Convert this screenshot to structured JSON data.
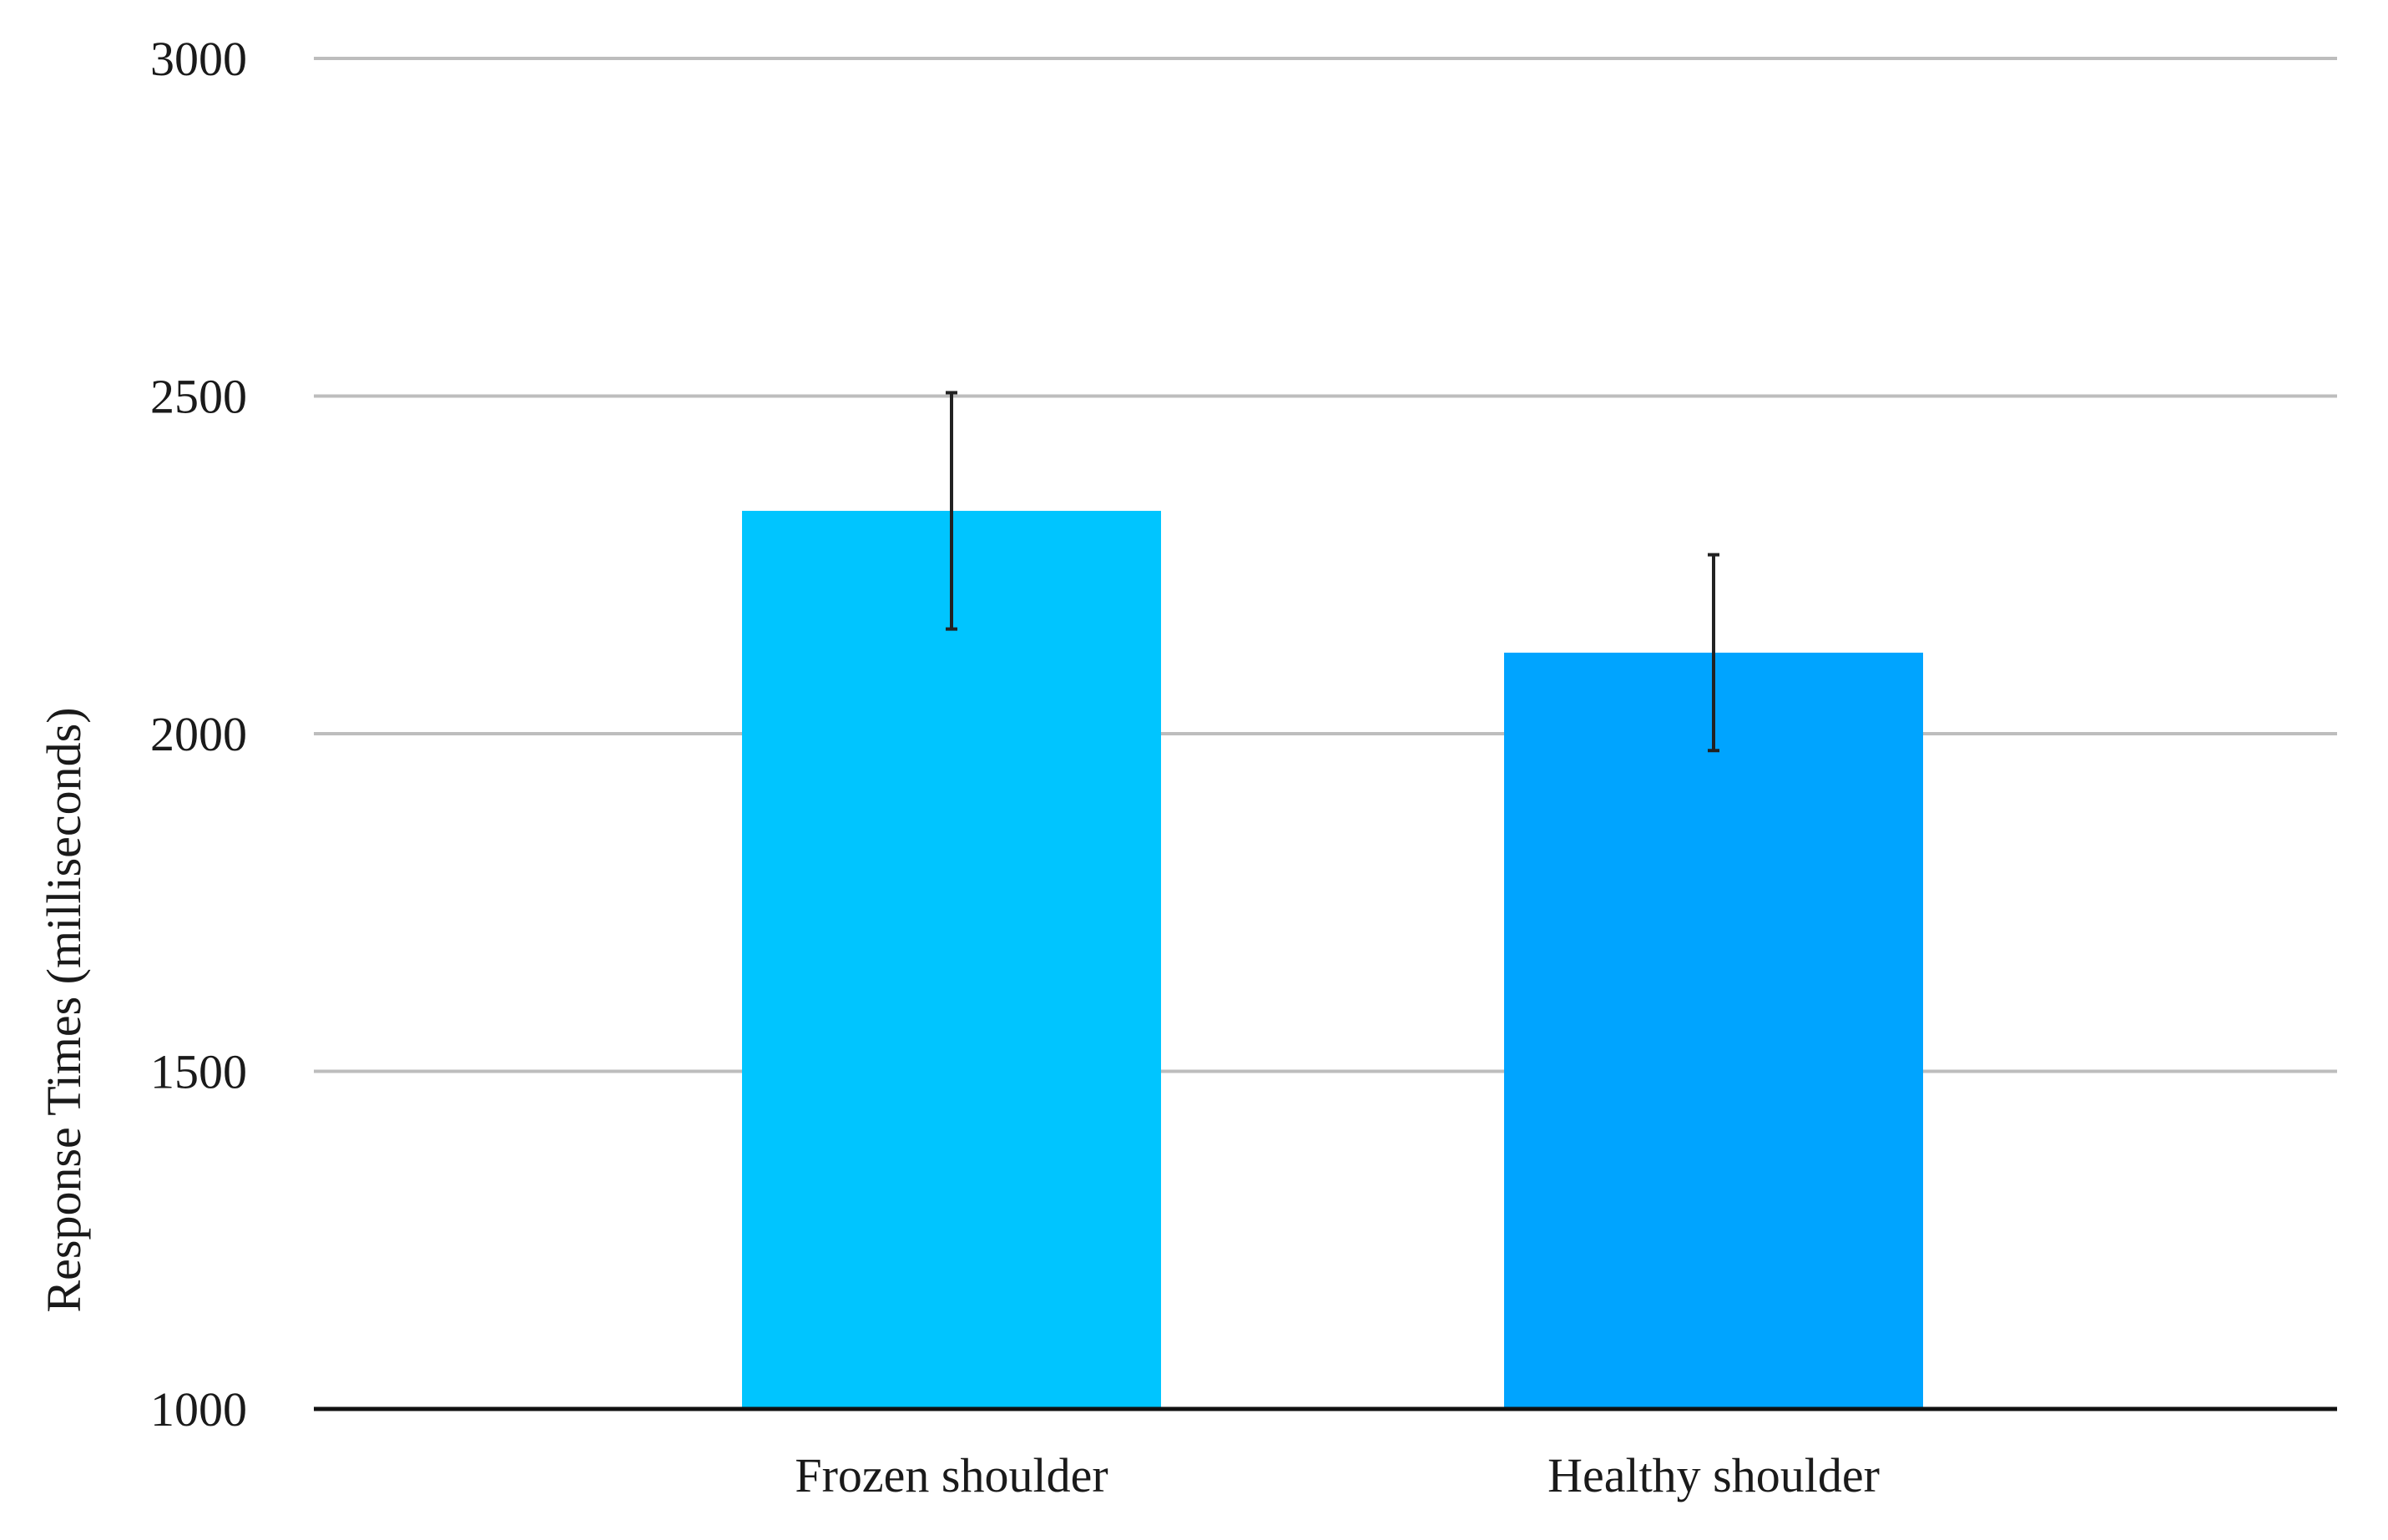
{
  "chart_data": {
    "type": "bar",
    "title": "",
    "xlabel": "",
    "ylabel": "Response Times (milliseconds)",
    "ylim": [
      1000,
      3000
    ],
    "yticks": [
      "1000",
      "1500",
      "2000",
      "2500",
      "3000"
    ],
    "grid": true,
    "legend": "none",
    "categories": [
      "Frozen shoulder",
      "Healthy shoulder"
    ],
    "values": [
      2330,
      2120
    ],
    "error": [
      175,
      145
    ],
    "colors": [
      "#00c5ff",
      "#00a4ff"
    ]
  }
}
